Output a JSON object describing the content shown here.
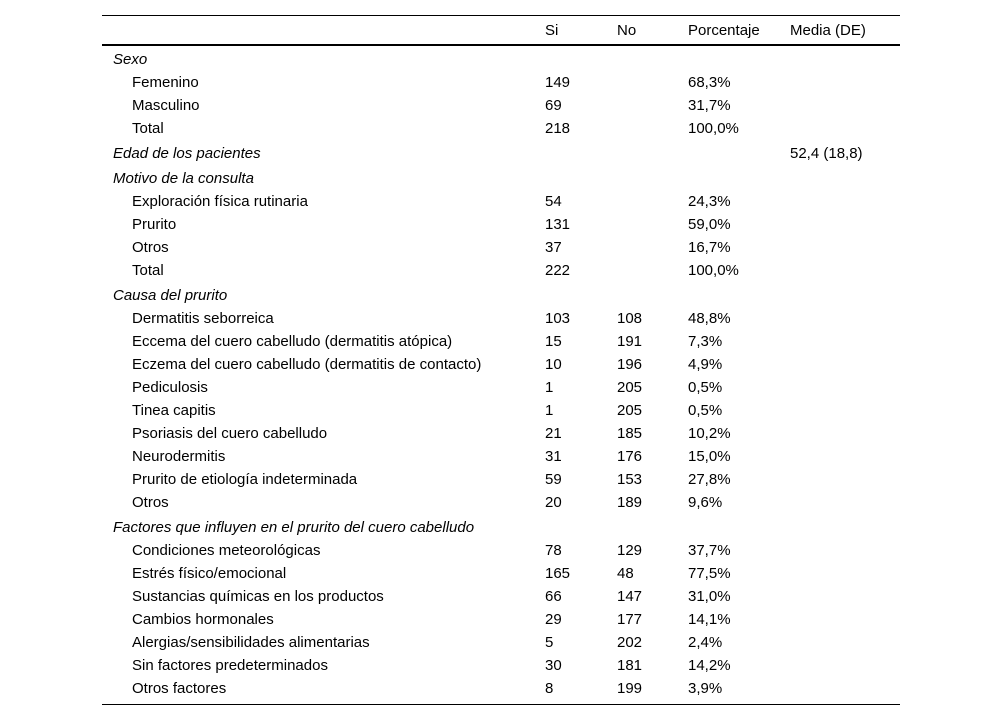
{
  "table": {
    "columns": [
      "",
      "Si",
      "No",
      "Porcentaje",
      "Media (DE)"
    ],
    "sections": [
      {
        "label": "Sexo",
        "media": "",
        "rows": [
          {
            "label": "Femenino",
            "si": "149",
            "no": "",
            "porcentaje": "68,3%",
            "media": ""
          },
          {
            "label": "Masculino",
            "si": "69",
            "no": "",
            "porcentaje": "31,7%",
            "media": ""
          },
          {
            "label": "Total",
            "si": "218",
            "no": "",
            "porcentaje": "100,0%",
            "media": ""
          }
        ]
      },
      {
        "label": "Edad de los pacientes",
        "media": "52,4 (18,8)",
        "rows": []
      },
      {
        "label": "Motivo de la consulta",
        "media": "",
        "rows": [
          {
            "label": "Exploración física rutinaria",
            "si": "54",
            "no": "",
            "porcentaje": "24,3%",
            "media": ""
          },
          {
            "label": "Prurito",
            "si": "131",
            "no": "",
            "porcentaje": "59,0%",
            "media": ""
          },
          {
            "label": "Otros",
            "si": "37",
            "no": "",
            "porcentaje": "16,7%",
            "media": ""
          },
          {
            "label": "Total",
            "si": "222",
            "no": "",
            "porcentaje": "100,0%",
            "media": ""
          }
        ]
      },
      {
        "label": "Causa del prurito",
        "media": "",
        "rows": [
          {
            "label": "Dermatitis seborreica",
            "si": "103",
            "no": "108",
            "porcentaje": "48,8%",
            "media": ""
          },
          {
            "label": "Eccema del cuero cabelludo (dermatitis atópica)",
            "si": "15",
            "no": "191",
            "porcentaje": "7,3%",
            "media": ""
          },
          {
            "label": "Eczema del cuero cabelludo (dermatitis de contacto)",
            "si": "10",
            "no": "196",
            "porcentaje": "4,9%",
            "media": ""
          },
          {
            "label": "Pediculosis",
            "si": "1",
            "no": "205",
            "porcentaje": "0,5%",
            "media": ""
          },
          {
            "label": "Tinea capitis",
            "si": "1",
            "no": "205",
            "porcentaje": "0,5%",
            "media": ""
          },
          {
            "label": "Psoriasis del cuero cabelludo",
            "si": "21",
            "no": "185",
            "porcentaje": "10,2%",
            "media": ""
          },
          {
            "label": "Neurodermitis",
            "si": "31",
            "no": "176",
            "porcentaje": "15,0%",
            "media": ""
          },
          {
            "label": "Prurito de etiología indeterminada",
            "si": "59",
            "no": "153",
            "porcentaje": "27,8%",
            "media": ""
          },
          {
            "label": "Otros",
            "si": "20",
            "no": "189",
            "porcentaje": "9,6%",
            "media": ""
          }
        ]
      },
      {
        "label": "Factores que influyen en el prurito del cuero cabelludo",
        "media": "",
        "rows": [
          {
            "label": "Condiciones meteorológicas",
            "si": "78",
            "no": "129",
            "porcentaje": "37,7%",
            "media": ""
          },
          {
            "label": "Estrés físico/emocional",
            "si": "165",
            "no": "48",
            "porcentaje": "77,5%",
            "media": ""
          },
          {
            "label": "Sustancias químicas en los productos",
            "si": "66",
            "no": "147",
            "porcentaje": "31,0%",
            "media": ""
          },
          {
            "label": "Cambios hormonales",
            "si": "29",
            "no": "177",
            "porcentaje": "14,1%",
            "media": ""
          },
          {
            "label": "Alergias/sensibilidades alimentarias",
            "si": "5",
            "no": "202",
            "porcentaje": "2,4%",
            "media": ""
          },
          {
            "label": "Sin factores predeterminados",
            "si": "30",
            "no": "181",
            "porcentaje": "14,2%",
            "media": ""
          },
          {
            "label": "Otros factores",
            "si": "8",
            "no": "199",
            "porcentaje": "3,9%",
            "media": ""
          }
        ]
      }
    ]
  }
}
